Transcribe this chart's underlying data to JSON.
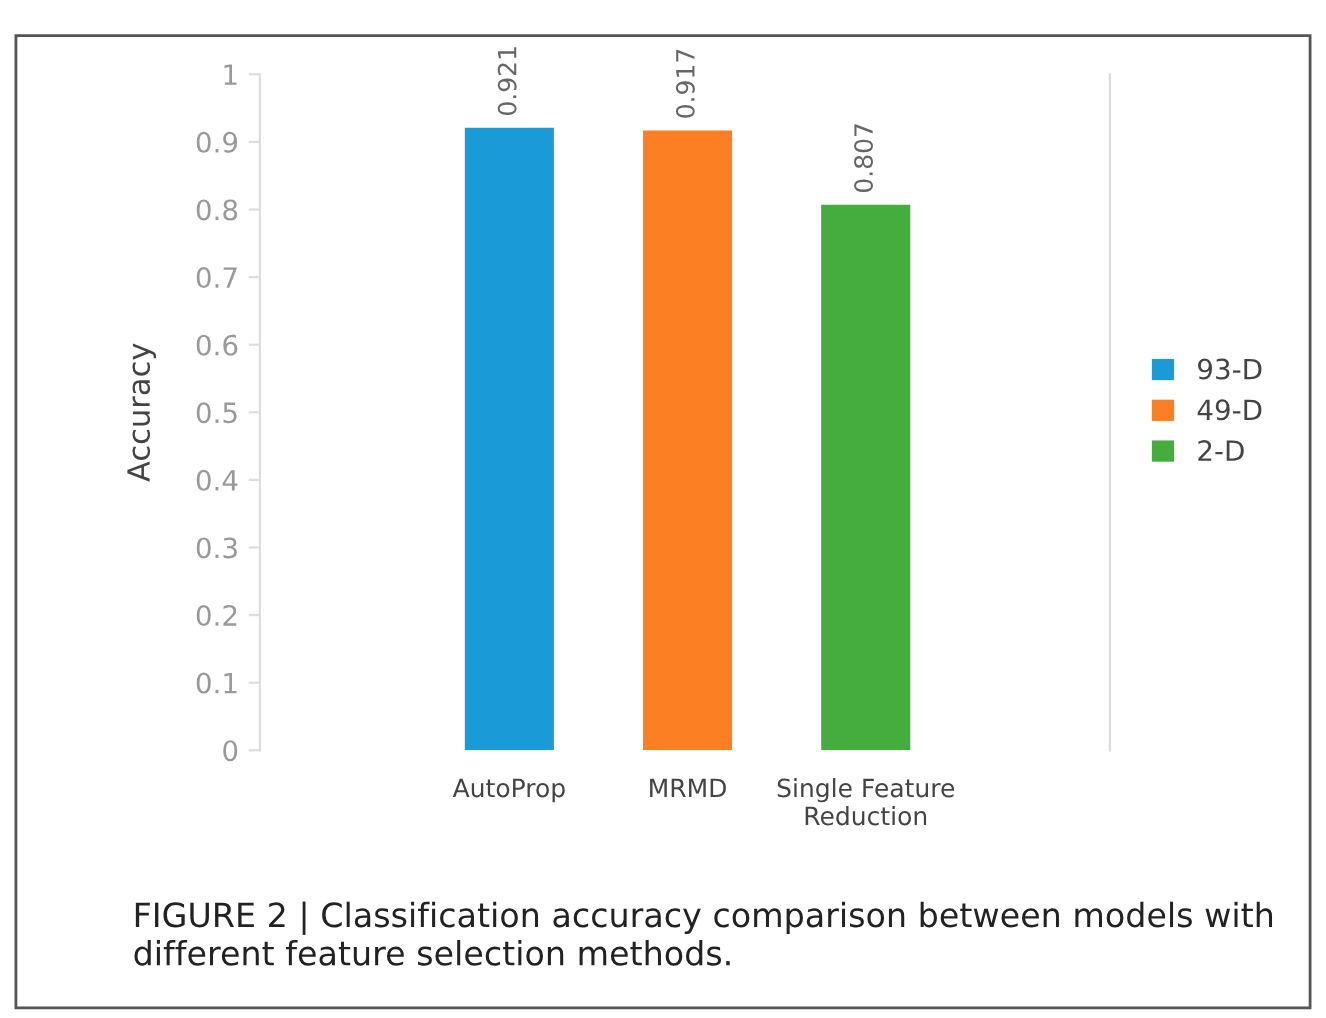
{
  "chart_data": {
    "type": "bar",
    "ylabel": "Accuracy",
    "categories": [
      "AutoProp",
      "MRMD",
      "Single Feature\nReduction"
    ],
    "series": [
      {
        "name": "93-D",
        "color": "#1a9ad6",
        "values": [
          0.921,
          null,
          null
        ]
      },
      {
        "name": "49-D",
        "color": "#fd7f23",
        "values": [
          null,
          0.917,
          null
        ]
      },
      {
        "name": "2-D",
        "color": "#44ad3d",
        "values": [
          null,
          null,
          0.807
        ]
      }
    ],
    "ylim": [
      0,
      1
    ],
    "yticks": [
      0,
      0.1,
      0.2,
      0.3,
      0.4,
      0.5,
      0.6,
      0.7,
      0.8,
      0.9,
      1
    ],
    "grid": false,
    "legend": "right",
    "data_labels": true,
    "annotations": [
      "FIGURE 2 | Classification accuracy comparison between models with different feature selection methods."
    ]
  }
}
